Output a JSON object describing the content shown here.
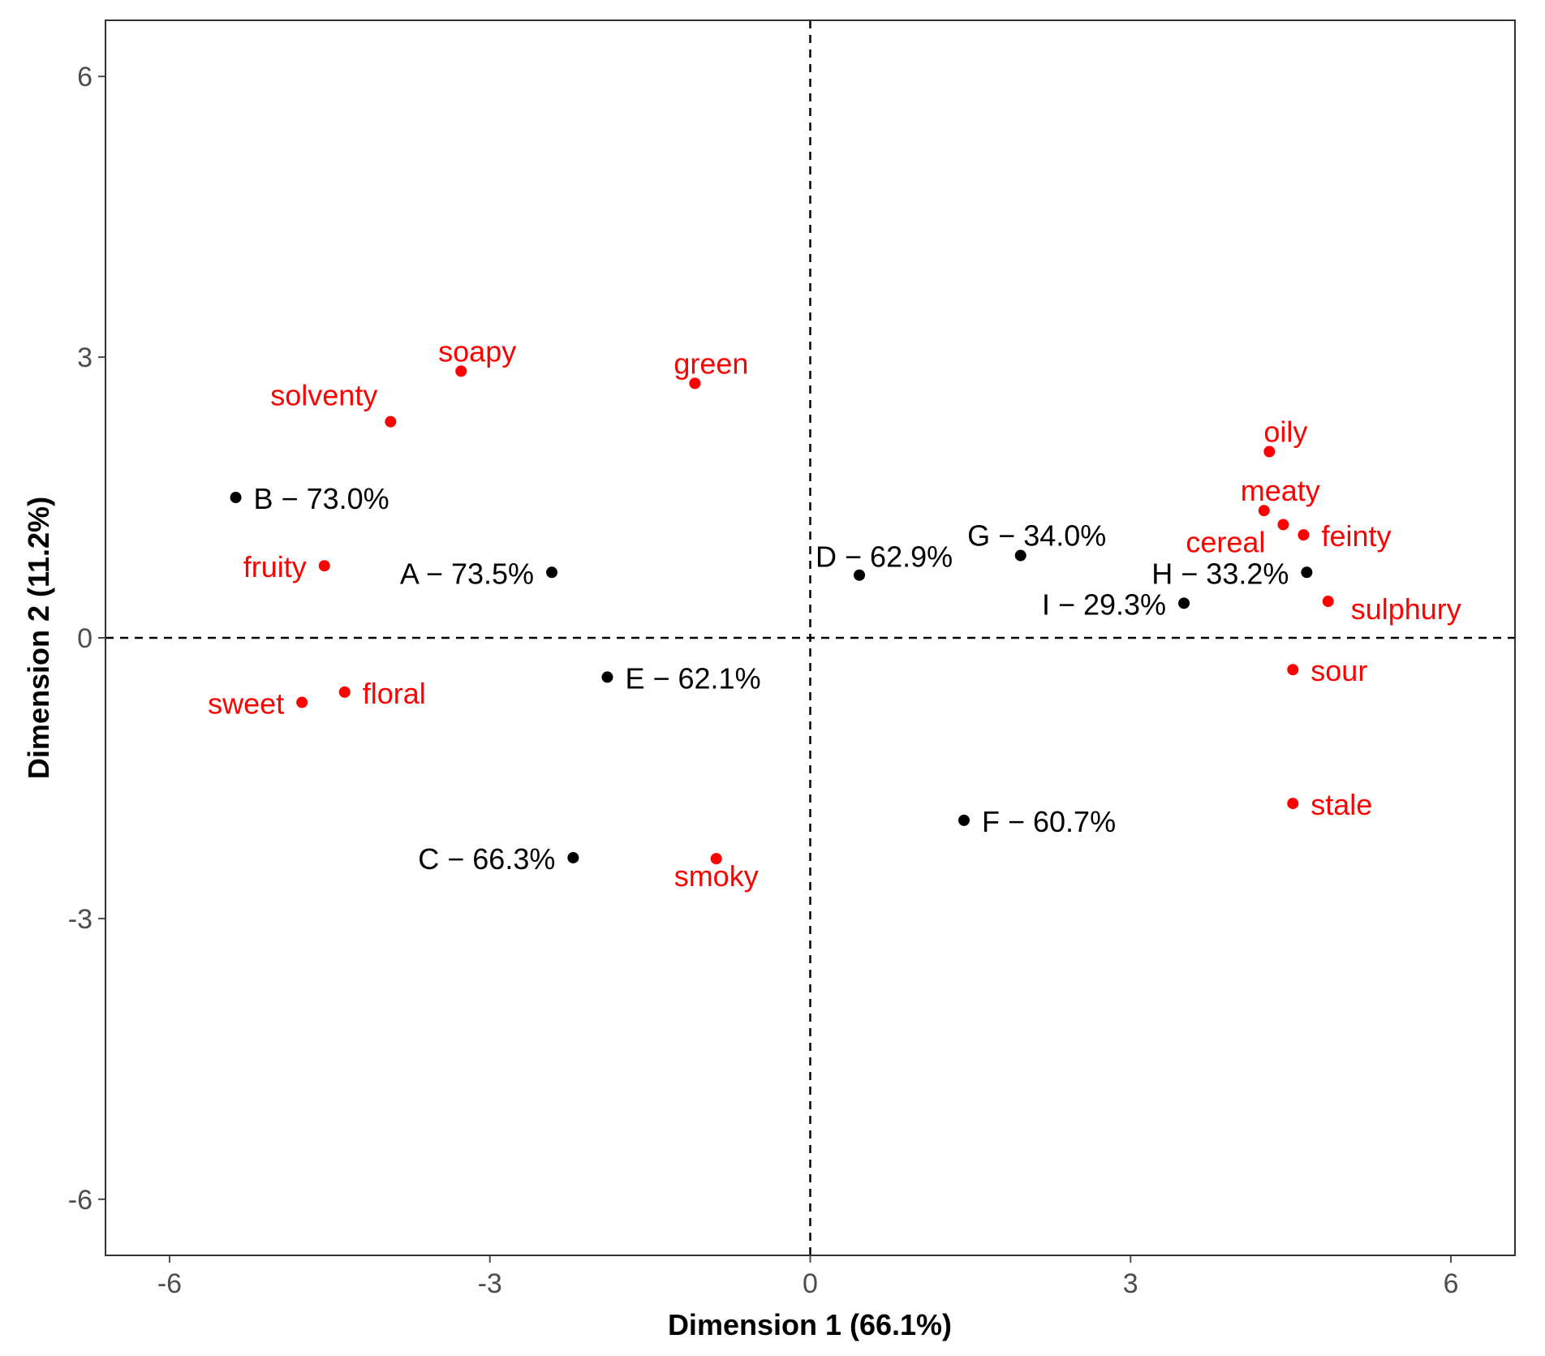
{
  "chart_data": {
    "type": "scatter",
    "title": "",
    "xlabel": "Dimension 1 (66.1%)",
    "ylabel": "Dimension 2 (11.2%)",
    "xlim": [
      -6.6,
      6.6
    ],
    "ylim": [
      -6.6,
      6.6
    ],
    "xticks": [
      -6,
      -3,
      0,
      3,
      6
    ],
    "yticks": [
      -6,
      -3,
      0,
      3,
      6
    ],
    "xtick_labels": [
      "-6",
      "-3",
      "0",
      "3",
      "6"
    ],
    "ytick_labels": [
      "-6",
      "-3",
      "0",
      "3",
      "6"
    ],
    "reference_lines": {
      "x": 0,
      "y": 0,
      "style": "dashed"
    },
    "grid": false,
    "colors": {
      "samples": "#000000",
      "attributes": "#ff0000",
      "frame": "#333333",
      "ticks": "#4d4d4d"
    },
    "series": [
      {
        "name": "samples",
        "color": "#000000",
        "points": [
          {
            "label": "A − 73.5%",
            "x": -2.42,
            "y": 0.7,
            "anchor": "left"
          },
          {
            "label": "B − 73.0%",
            "x": -5.38,
            "y": 1.5,
            "anchor": "right"
          },
          {
            "label": "C − 66.3%",
            "x": -2.22,
            "y": -2.35,
            "anchor": "left"
          },
          {
            "label": "D − 62.9%",
            "x": 0.46,
            "y": 0.67,
            "anchor": "top-left"
          },
          {
            "label": "E − 62.1%",
            "x": -1.9,
            "y": -0.42,
            "anchor": "right"
          },
          {
            "label": "F − 60.7%",
            "x": 1.44,
            "y": -1.95,
            "anchor": "right"
          },
          {
            "label": "G − 34.0%",
            "x": 1.97,
            "y": 0.88,
            "anchor": "above"
          },
          {
            "label": "H − 33.2%",
            "x": 4.65,
            "y": 0.7,
            "anchor": "left"
          },
          {
            "label": "I − 29.3%",
            "x": 3.5,
            "y": 0.37,
            "anchor": "left"
          }
        ]
      },
      {
        "name": "attributes",
        "color": "#ff0000",
        "points": [
          {
            "label": "soapy",
            "x": -3.27,
            "y": 2.85,
            "anchor": "above"
          },
          {
            "label": "green",
            "x": -1.08,
            "y": 2.72,
            "anchor": "above"
          },
          {
            "label": "solventy",
            "x": -3.93,
            "y": 2.31,
            "anchor": "above-left"
          },
          {
            "label": "fruity",
            "x": -4.55,
            "y": 0.77,
            "anchor": "left"
          },
          {
            "label": "sweet",
            "x": -4.76,
            "y": -0.69,
            "anchor": "left"
          },
          {
            "label": "floral",
            "x": -4.36,
            "y": -0.58,
            "anchor": "right"
          },
          {
            "label": "smoky",
            "x": -0.88,
            "y": -2.36,
            "anchor": "below"
          },
          {
            "label": "oily",
            "x": 4.3,
            "y": 1.99,
            "anchor": "above"
          },
          {
            "label": "meaty",
            "x": 4.25,
            "y": 1.36,
            "anchor": "above"
          },
          {
            "label": "cereal",
            "x": 4.43,
            "y": 1.21,
            "anchor": "below-left"
          },
          {
            "label": "feinty",
            "x": 4.62,
            "y": 1.1,
            "anchor": "right"
          },
          {
            "label": "sulphury",
            "x": 4.85,
            "y": 0.39,
            "anchor": "below-right"
          },
          {
            "label": "sour",
            "x": 4.52,
            "y": -0.34,
            "anchor": "right"
          },
          {
            "label": "stale",
            "x": 4.52,
            "y": -1.77,
            "anchor": "right"
          }
        ]
      }
    ]
  }
}
